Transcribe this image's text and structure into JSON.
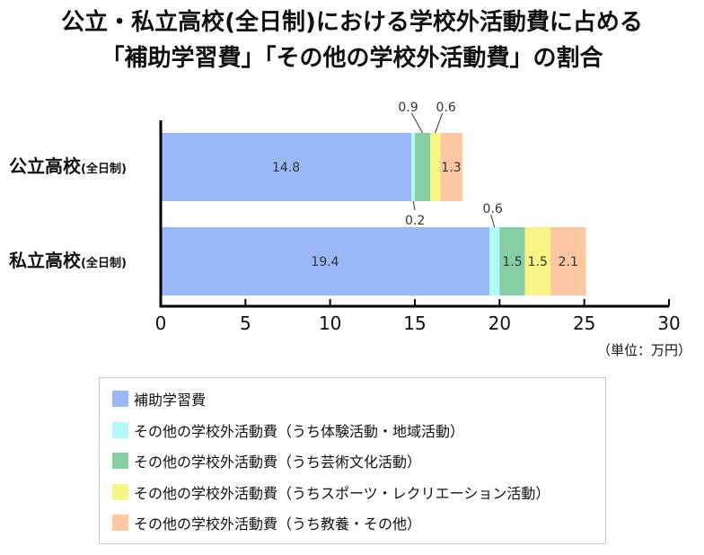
{
  "chart_data": {
    "type": "bar",
    "orientation": "horizontal",
    "stacked": true,
    "title_lines": [
      "公立・私立高校(全日制)における学校外活動費に占める",
      "「補助学習費」「その他の学校外活動費」の割合"
    ],
    "categories": [
      {
        "name": "公立高校",
        "suffix": "(全日制)"
      },
      {
        "name": "私立高校",
        "suffix": "(全日制)"
      }
    ],
    "series": [
      {
        "name": "補助学習費",
        "color": "#9ab8f8",
        "values": [
          14.8,
          19.4
        ]
      },
      {
        "name": "その他の学校外活動費（うち体験活動・地域活動）",
        "color": "#b3fbfb",
        "values": [
          0.2,
          0.6
        ]
      },
      {
        "name": "その他の学校外活動費（うち芸術文化活動）",
        "color": "#86cfa5",
        "values": [
          0.9,
          1.5
        ]
      },
      {
        "name": "その他の学校外活動費（うちスポーツ・レクリエーション活動）",
        "color": "#f6f584",
        "values": [
          0.6,
          1.5
        ]
      },
      {
        "name": "その他の学校外活動費（うち教養・その他）",
        "color": "#fcc7a1",
        "values": [
          1.3,
          2.1
        ]
      }
    ],
    "xlim": [
      0,
      30
    ],
    "xticks": [
      "0",
      "5",
      "10",
      "15",
      "20",
      "25",
      "30"
    ],
    "unit_label": "（単位：万円）",
    "value_labels": [
      [
        "14.8",
        "0.2",
        "0.9",
        "0.6",
        "1.3"
      ],
      [
        "19.4",
        "0.6",
        "1.5",
        "1.5",
        "2.1"
      ]
    ],
    "grid": false,
    "legend_position": "bottom"
  }
}
